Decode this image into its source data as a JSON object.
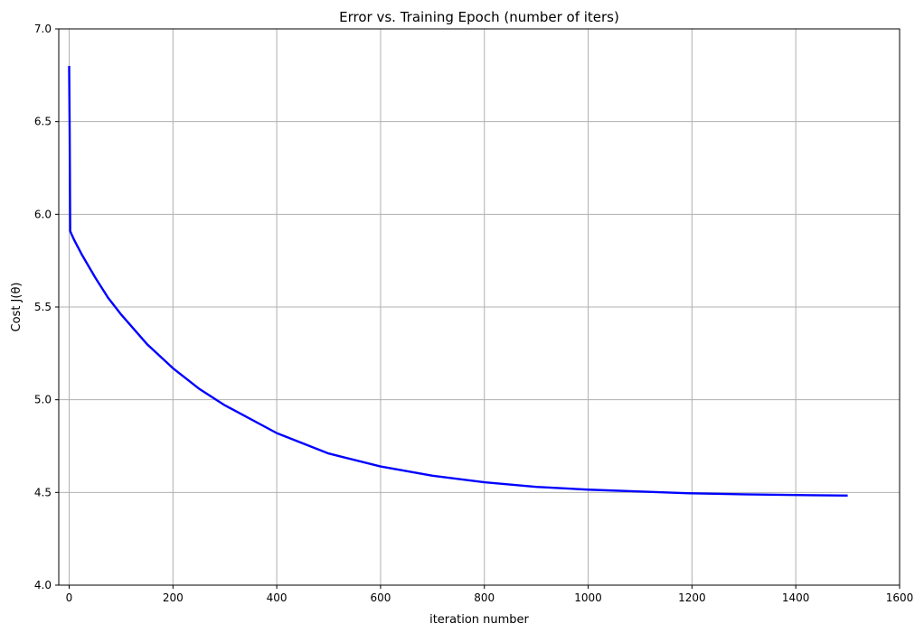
{
  "chart_data": {
    "type": "line",
    "title": "Error vs. Training Epoch (number of iters)",
    "xlabel": "iteration number",
    "ylabel": "Cost J(θ)",
    "xlim": [
      -20,
      1600
    ],
    "ylim": [
      4.0,
      7.0
    ],
    "xticks": [
      0,
      200,
      400,
      600,
      800,
      1000,
      1200,
      1400,
      1600
    ],
    "yticks": [
      4.0,
      4.5,
      5.0,
      5.5,
      6.0,
      6.5,
      7.0
    ],
    "xtick_labels": [
      "0",
      "200",
      "400",
      "600",
      "800",
      "1000",
      "1200",
      "1400",
      "1600"
    ],
    "ytick_labels": [
      "4.0",
      "4.5",
      "5.0",
      "5.5",
      "6.0",
      "6.5",
      "7.0"
    ],
    "grid": true,
    "series": [
      {
        "color": "#0000ff",
        "x": [
          0,
          1,
          2,
          5,
          10,
          25,
          50,
          75,
          100,
          150,
          200,
          250,
          300,
          400,
          500,
          600,
          700,
          800,
          900,
          1000,
          1100,
          1200,
          1300,
          1400,
          1500
        ],
        "y": [
          6.8,
          6.45,
          5.91,
          5.89,
          5.86,
          5.78,
          5.66,
          5.55,
          5.46,
          5.3,
          5.17,
          5.06,
          4.97,
          4.82,
          4.71,
          4.64,
          4.59,
          4.555,
          4.53,
          4.515,
          4.505,
          4.495,
          4.49,
          4.486,
          4.483
        ]
      }
    ]
  }
}
